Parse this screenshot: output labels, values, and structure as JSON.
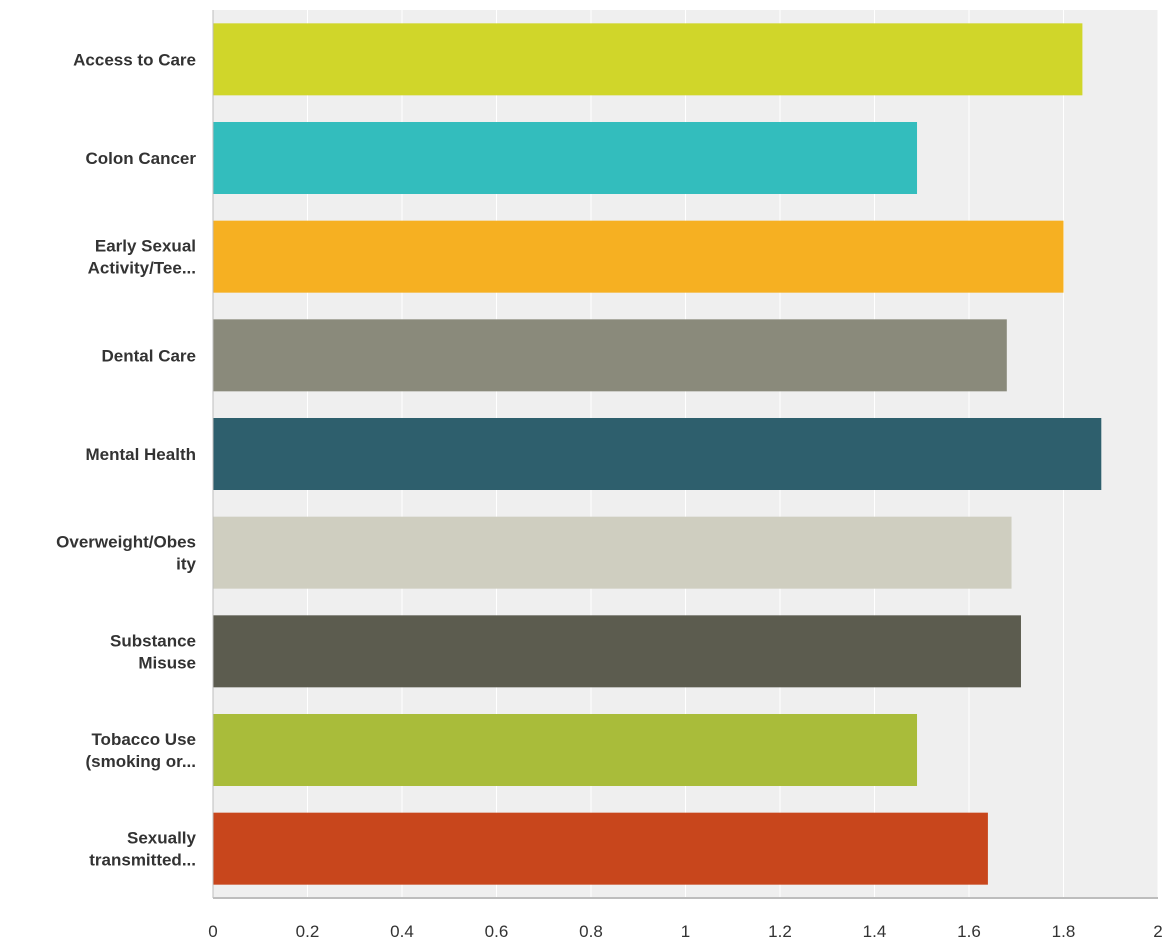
{
  "chart_data": {
    "type": "bar",
    "orientation": "horizontal",
    "categories": [
      [
        "Access to Care"
      ],
      [
        "Colon Cancer"
      ],
      [
        "Early Sexual",
        "Activity/Tee..."
      ],
      [
        "Dental Care"
      ],
      [
        "Mental Health"
      ],
      [
        "Overweight/Obes",
        "ity"
      ],
      [
        "Substance",
        "Misuse"
      ],
      [
        "Tobacco Use",
        "(smoking or..."
      ],
      [
        "Sexually",
        "transmitted..."
      ]
    ],
    "values": [
      1.84,
      1.49,
      1.8,
      1.68,
      1.88,
      1.69,
      1.71,
      1.49,
      1.64
    ],
    "colors": [
      "#d0d62a",
      "#33bdbd",
      "#f6b022",
      "#8a8a7b",
      "#2e5f6d",
      "#cfcec0",
      "#5c5c4f",
      "#a9bc3a",
      "#c8461c"
    ],
    "xlim": [
      0,
      2
    ],
    "xticks": [
      "0",
      "0.2",
      "0.4",
      "0.6",
      "0.8",
      "1",
      "1.2",
      "1.4",
      "1.6",
      "1.8",
      "2"
    ],
    "grid": true,
    "plot_background": "#efefef",
    "title": "",
    "xlabel": "",
    "ylabel": ""
  }
}
